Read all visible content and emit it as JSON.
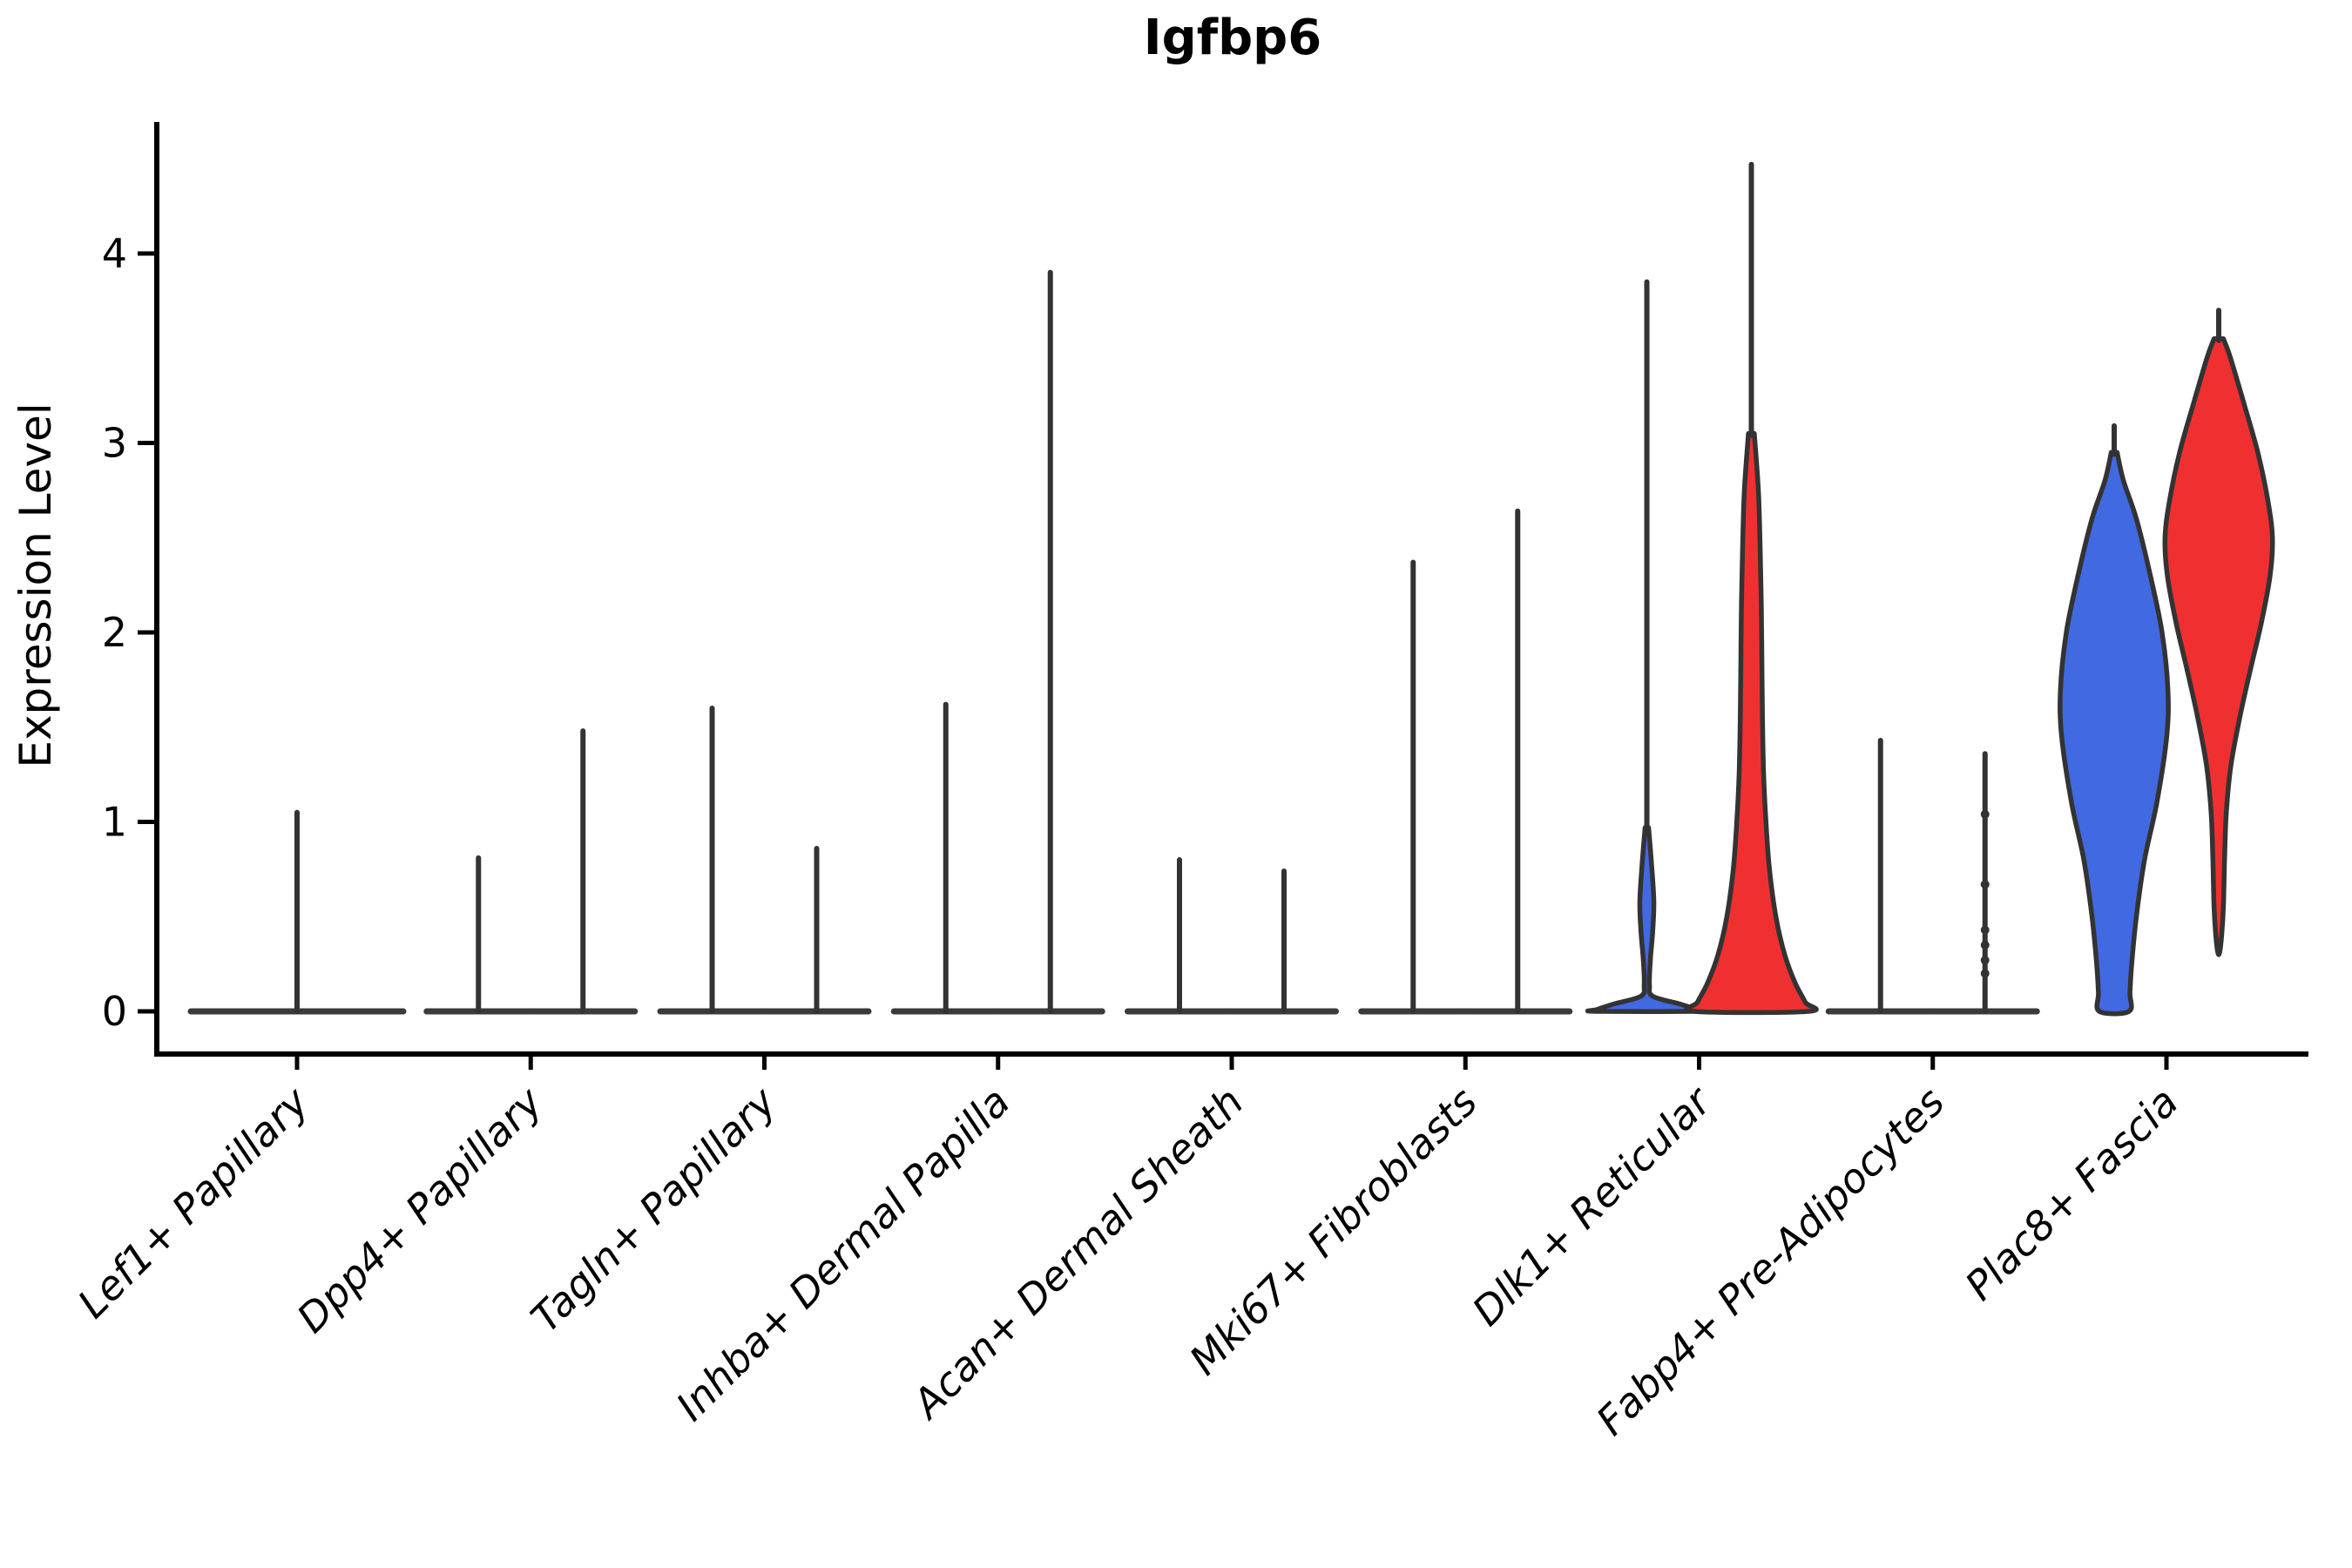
{
  "page": {
    "background": "#ffffff"
  },
  "chart_data": {
    "type": "violin",
    "title": "Igfbp6",
    "xlabel": "",
    "ylabel": "Expression Level",
    "yticks": [
      0,
      1,
      2,
      3,
      4
    ],
    "ylim": [
      -0.25,
      4.7
    ],
    "grid": false,
    "legend": "none",
    "colors": {
      "condition_a": "#4169E1",
      "condition_b": "#F03030",
      "outline": "#333333",
      "baseline": "#3A3A3A",
      "axis": "#000000"
    },
    "categories": [
      "Lef1+ Papillary",
      "Dpp4+ Papillary",
      "Tagln+ Papillary",
      "Inhba+ Dermal Papilla",
      "Acan+ Dermal Sheath",
      "Mki67+ Fibroblasts",
      "Dlk1+ Reticular",
      "Fabp4+ Pre-Adipocytes",
      "Plac8+ Fascia"
    ],
    "groups": [
      {
        "category": "Lef1+ Papillary",
        "violins": [
          {
            "side": "single",
            "kind": "spike",
            "max": 1.05
          }
        ]
      },
      {
        "category": "Dpp4+ Papillary",
        "violins": [
          {
            "side": "left",
            "kind": "spike",
            "max": 0.81
          },
          {
            "side": "right",
            "kind": "spike",
            "max": 1.48
          }
        ]
      },
      {
        "category": "Tagln+ Papillary",
        "violins": [
          {
            "side": "left",
            "kind": "spike",
            "max": 1.6
          },
          {
            "side": "right",
            "kind": "spike",
            "max": 0.86
          }
        ]
      },
      {
        "category": "Inhba+ Dermal Papilla",
        "violins": [
          {
            "side": "left",
            "kind": "spike",
            "max": 1.62
          },
          {
            "side": "right",
            "kind": "spike",
            "max": 3.9
          }
        ]
      },
      {
        "category": "Acan+ Dermal Sheath",
        "violins": [
          {
            "side": "left",
            "kind": "spike",
            "max": 0.8
          },
          {
            "side": "right",
            "kind": "spike",
            "max": 0.74
          }
        ]
      },
      {
        "category": "Mki67+ Fibroblasts",
        "violins": [
          {
            "side": "left",
            "kind": "spike",
            "max": 2.37
          },
          {
            "side": "right",
            "kind": "spike",
            "max": 2.64
          }
        ]
      },
      {
        "category": "Dlk1+ Reticular",
        "violins": [
          {
            "side": "left",
            "kind": "body",
            "fill": "condition_a",
            "spike_top": 3.85,
            "flat_bottom": true,
            "profile": [
              [
                0.97,
                0.03
              ],
              [
                0.78,
                0.08
              ],
              [
                0.58,
                0.12
              ],
              [
                0.42,
                0.1
              ],
              [
                0.27,
                0.06
              ],
              [
                0.14,
                0.045
              ],
              [
                0.08,
                0.1
              ],
              [
                0.04,
                0.55
              ],
              [
                0.01,
                0.85
              ],
              [
                0.0,
                0.88
              ]
            ]
          },
          {
            "side": "right",
            "kind": "body",
            "fill": "condition_b",
            "spike_top": 4.47,
            "flat_bottom": true,
            "profile": [
              [
                3.05,
                0.05
              ],
              [
                2.75,
                0.12
              ],
              [
                2.45,
                0.15
              ],
              [
                2.15,
                0.17
              ],
              [
                1.85,
                0.18
              ],
              [
                1.55,
                0.19
              ],
              [
                1.25,
                0.21
              ],
              [
                1.0,
                0.25
              ],
              [
                0.75,
                0.31
              ],
              [
                0.5,
                0.42
              ],
              [
                0.3,
                0.57
              ],
              [
                0.15,
                0.75
              ],
              [
                0.05,
                0.92
              ],
              [
                0.0,
                0.98
              ]
            ]
          }
        ]
      },
      {
        "category": "Fabp4+ Pre-Adipocytes",
        "violins": [
          {
            "side": "left",
            "kind": "spike",
            "max": 1.43
          },
          {
            "side": "right",
            "kind": "spike",
            "max": 1.36,
            "points": [
              1.04,
              0.67,
              0.43,
              0.35,
              0.27,
              0.2
            ]
          }
        ]
      },
      {
        "category": "Plac8+ Fascia",
        "violins": [
          {
            "side": "left",
            "kind": "body",
            "fill": "condition_a",
            "spike_top": 3.09,
            "flat_bottom": true,
            "profile": [
              [
                2.95,
                0.05
              ],
              [
                2.8,
                0.16
              ],
              [
                2.6,
                0.38
              ],
              [
                2.3,
                0.62
              ],
              [
                2.0,
                0.82
              ],
              [
                1.7,
                0.92
              ],
              [
                1.45,
                0.9
              ],
              [
                1.1,
                0.73
              ],
              [
                0.8,
                0.52
              ],
              [
                0.5,
                0.38
              ],
              [
                0.25,
                0.3
              ],
              [
                0.1,
                0.27
              ],
              [
                0.0,
                0.255
              ]
            ]
          },
          {
            "side": "right",
            "kind": "body",
            "fill": "condition_b",
            "spike_top": 3.7,
            "flat_bottom": false,
            "profile": [
              [
                3.55,
                0.08
              ],
              [
                3.45,
                0.2
              ],
              [
                3.2,
                0.44
              ],
              [
                2.95,
                0.67
              ],
              [
                2.7,
                0.84
              ],
              [
                2.5,
                0.92
              ],
              [
                2.3,
                0.88
              ],
              [
                2.05,
                0.73
              ],
              [
                1.8,
                0.54
              ],
              [
                1.55,
                0.36
              ],
              [
                1.3,
                0.21
              ],
              [
                1.05,
                0.13
              ],
              [
                0.8,
                0.1
              ],
              [
                0.55,
                0.08
              ],
              [
                0.4,
                0.05
              ],
              [
                0.31,
                0.015
              ]
            ]
          }
        ]
      }
    ]
  }
}
